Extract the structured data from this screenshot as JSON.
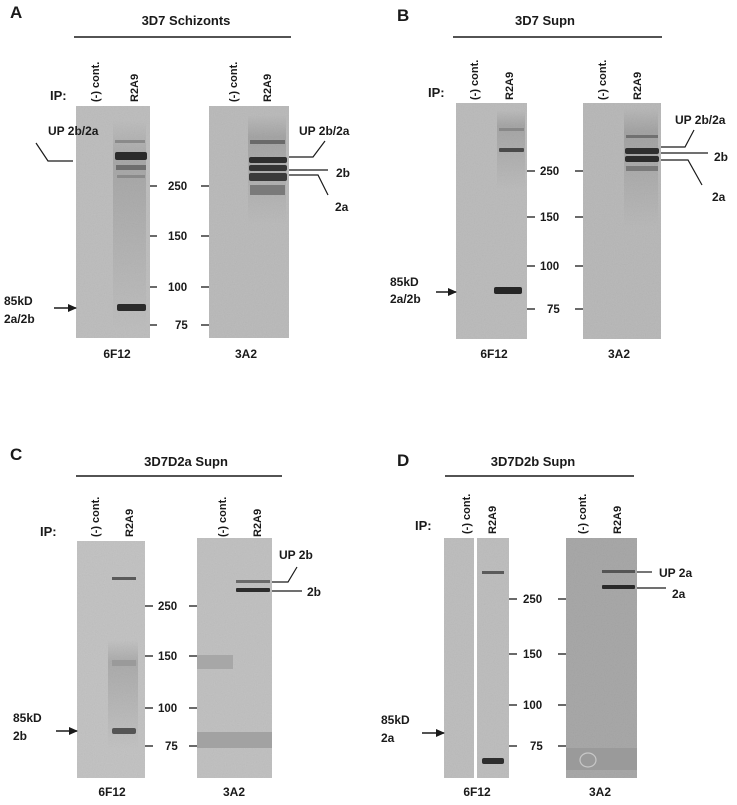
{
  "ip_label": "IP:",
  "mw_marker_label": "85kD",
  "panels": [
    {
      "letter": "A",
      "title": "3D7 Schizonts",
      "lanes": [
        "(-) cont.",
        "R2A9",
        "(-) cont.",
        "R2A9"
      ],
      "antibodies": [
        "6F12",
        "3A2"
      ],
      "mw_markers": [
        "250",
        "150",
        "100",
        "75"
      ],
      "left_annotations": [
        "UP 2b/2a",
        "2a/2b"
      ],
      "right_annotations": [
        "UP 2b/2a",
        "2b",
        "2a"
      ]
    },
    {
      "letter": "B",
      "title": "3D7 Supn",
      "lanes": [
        "(-) cont.",
        "R2A9",
        "(-) cont.",
        "R2A9"
      ],
      "antibodies": [
        "6F12",
        "3A2"
      ],
      "mw_markers": [
        "250",
        "150",
        "100",
        "75"
      ],
      "left_annotations": [
        "2a/2b"
      ],
      "right_annotations": [
        "UP 2b/2a",
        "2b",
        "2a"
      ]
    },
    {
      "letter": "C",
      "title": "3D7D2a Supn",
      "lanes": [
        "(-) cont.",
        "R2A9",
        "(-) cont.",
        "R2A9"
      ],
      "antibodies": [
        "6F12",
        "3A2"
      ],
      "mw_markers": [
        "250",
        "150",
        "100",
        "75"
      ],
      "left_annotations": [
        "2b"
      ],
      "right_annotations": [
        "UP 2b",
        "2b"
      ]
    },
    {
      "letter": "D",
      "title": "3D7D2b Supn",
      "lanes": [
        "(-) cont.",
        "R2A9",
        "(-) cont.",
        "R2A9"
      ],
      "antibodies": [
        "6F12",
        "3A2"
      ],
      "mw_markers": [
        "250",
        "150",
        "100",
        "75"
      ],
      "left_annotations": [
        "2a"
      ],
      "right_annotations": [
        "UP 2a",
        "2a"
      ]
    }
  ]
}
